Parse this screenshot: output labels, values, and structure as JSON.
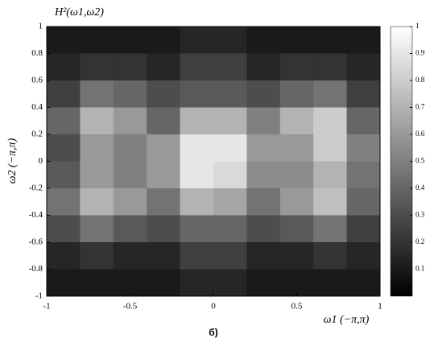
{
  "chart_data": {
    "type": "heatmap",
    "title": "H²(ω1,ω2)",
    "xlabel": "ω1 (−π,π)",
    "ylabel": "ω2 (−π,π)",
    "caption": "б)",
    "x": [
      -0.9,
      -0.7,
      -0.5,
      -0.3,
      -0.1,
      0.1,
      0.3,
      0.5,
      0.7,
      0.9
    ],
    "y": [
      0.9,
      0.7,
      0.5,
      0.3,
      0.1,
      -0.1,
      -0.3,
      -0.5,
      -0.7,
      -0.9
    ],
    "z": [
      [
        0.1,
        0.1,
        0.1,
        0.1,
        0.15,
        0.15,
        0.1,
        0.1,
        0.1,
        0.1
      ],
      [
        0.15,
        0.2,
        0.2,
        0.15,
        0.25,
        0.25,
        0.15,
        0.2,
        0.2,
        0.15
      ],
      [
        0.25,
        0.45,
        0.4,
        0.3,
        0.35,
        0.35,
        0.3,
        0.4,
        0.45,
        0.25
      ],
      [
        0.4,
        0.7,
        0.6,
        0.4,
        0.7,
        0.7,
        0.5,
        0.7,
        0.8,
        0.4
      ],
      [
        0.3,
        0.6,
        0.5,
        0.6,
        0.9,
        0.9,
        0.6,
        0.6,
        0.8,
        0.5
      ],
      [
        0.35,
        0.6,
        0.5,
        0.6,
        0.9,
        0.85,
        0.55,
        0.55,
        0.7,
        0.45
      ],
      [
        0.45,
        0.7,
        0.6,
        0.45,
        0.7,
        0.65,
        0.45,
        0.6,
        0.75,
        0.4
      ],
      [
        0.3,
        0.45,
        0.35,
        0.3,
        0.4,
        0.4,
        0.3,
        0.35,
        0.45,
        0.25
      ],
      [
        0.15,
        0.2,
        0.15,
        0.15,
        0.25,
        0.25,
        0.15,
        0.15,
        0.2,
        0.15
      ],
      [
        0.1,
        0.1,
        0.1,
        0.1,
        0.15,
        0.15,
        0.1,
        0.1,
        0.1,
        0.1
      ]
    ],
    "xlim": [
      -1,
      1
    ],
    "ylim": [
      -1,
      1
    ],
    "xticks": [
      -1,
      -0.5,
      0,
      0.5,
      1
    ],
    "yticks": [
      -1,
      -0.8,
      -0.6,
      -0.4,
      -0.2,
      0,
      0.2,
      0.4,
      0.6,
      0.8,
      1
    ],
    "clim": [
      0,
      1
    ],
    "cticks": [
      0.1,
      0.2,
      0.3,
      0.4,
      0.5,
      0.6,
      0.7,
      0.8,
      0.9,
      1
    ],
    "colormap": [
      "#000000",
      "#ffffff"
    ]
  }
}
